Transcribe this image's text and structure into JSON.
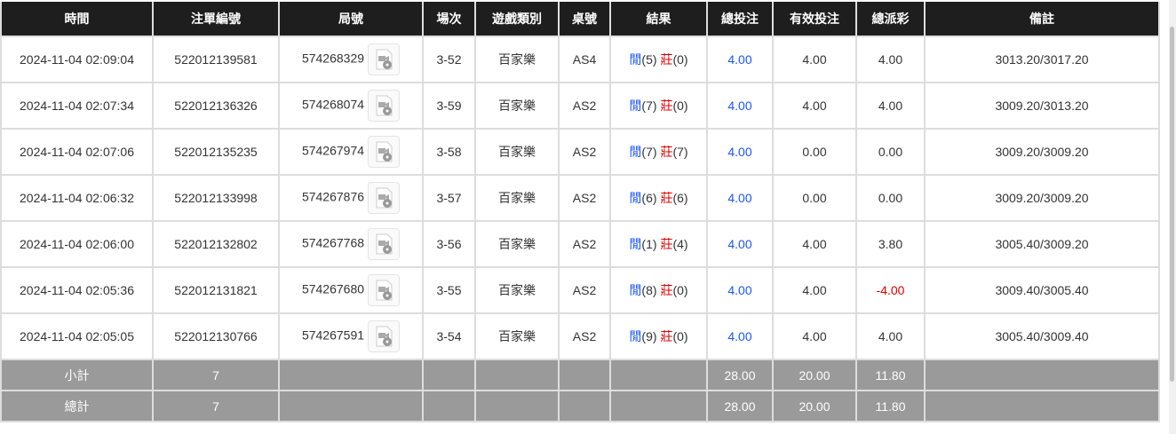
{
  "headers": [
    "時間",
    "注單編號",
    "局號",
    "場次",
    "遊戲類別",
    "桌號",
    "結果",
    "總投注",
    "有效投注",
    "總派彩",
    "備註"
  ],
  "colors": {
    "player": "#1a56ff",
    "banker": "#e00000",
    "negative": "#e00000",
    "header_bg": "#1e1e1e",
    "summary_bg": "#9a9a9a"
  },
  "icons": {
    "replay": "video-replay-icon"
  },
  "rows": [
    {
      "time": "2024-11-04 02:09:04",
      "bet_id": "522012139581",
      "round": "574268329",
      "shoe": "3-52",
      "game": "百家樂",
      "table": "AS4",
      "player_label": "閒",
      "player": "(5)",
      "banker_label": "莊",
      "banker": "(0)",
      "total_bet": "4.00",
      "valid_bet": "4.00",
      "payout": "4.00",
      "note": "3013.20/3017.20"
    },
    {
      "time": "2024-11-04 02:07:34",
      "bet_id": "522012136326",
      "round": "574268074",
      "shoe": "3-59",
      "game": "百家樂",
      "table": "AS2",
      "player_label": "閒",
      "player": "(7)",
      "banker_label": "莊",
      "banker": "(0)",
      "total_bet": "4.00",
      "valid_bet": "4.00",
      "payout": "4.00",
      "note": "3009.20/3013.20"
    },
    {
      "time": "2024-11-04 02:07:06",
      "bet_id": "522012135235",
      "round": "574267974",
      "shoe": "3-58",
      "game": "百家樂",
      "table": "AS2",
      "player_label": "閒",
      "player": "(7)",
      "banker_label": "莊",
      "banker": "(7)",
      "total_bet": "4.00",
      "valid_bet": "0.00",
      "payout": "0.00",
      "note": "3009.20/3009.20"
    },
    {
      "time": "2024-11-04 02:06:32",
      "bet_id": "522012133998",
      "round": "574267876",
      "shoe": "3-57",
      "game": "百家樂",
      "table": "AS2",
      "player_label": "閒",
      "player": "(6)",
      "banker_label": "莊",
      "banker": "(6)",
      "total_bet": "4.00",
      "valid_bet": "0.00",
      "payout": "0.00",
      "note": "3009.20/3009.20"
    },
    {
      "time": "2024-11-04 02:06:00",
      "bet_id": "522012132802",
      "round": "574267768",
      "shoe": "3-56",
      "game": "百家樂",
      "table": "AS2",
      "player_label": "閒",
      "player": "(1)",
      "banker_label": "莊",
      "banker": "(4)",
      "total_bet": "4.00",
      "valid_bet": "4.00",
      "payout": "3.80",
      "note": "3005.40/3009.20"
    },
    {
      "time": "2024-11-04 02:05:36",
      "bet_id": "522012131821",
      "round": "574267680",
      "shoe": "3-55",
      "game": "百家樂",
      "table": "AS2",
      "player_label": "閒",
      "player": "(8)",
      "banker_label": "莊",
      "banker": "(0)",
      "total_bet": "4.00",
      "valid_bet": "4.00",
      "payout": "-4.00",
      "note": "3009.40/3005.40"
    },
    {
      "time": "2024-11-04 02:05:05",
      "bet_id": "522012130766",
      "round": "574267591",
      "shoe": "3-54",
      "game": "百家樂",
      "table": "AS2",
      "player_label": "閒",
      "player": "(9)",
      "banker_label": "莊",
      "banker": "(0)",
      "total_bet": "4.00",
      "valid_bet": "4.00",
      "payout": "4.00",
      "note": "3005.40/3009.40"
    }
  ],
  "subtotal": {
    "label": "小計",
    "count": "7",
    "total_bet": "28.00",
    "valid_bet": "20.00",
    "payout": "11.80"
  },
  "grand_total": {
    "label": "總計",
    "count": "7",
    "total_bet": "28.00",
    "valid_bet": "20.00",
    "payout": "11.80"
  }
}
